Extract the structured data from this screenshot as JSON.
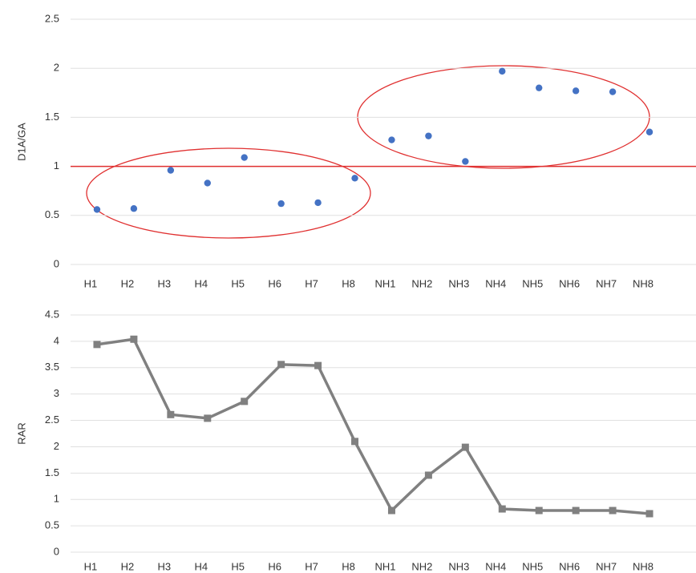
{
  "chart_data": [
    {
      "type": "scatter",
      "y_label": "D1A/GA",
      "categories": [
        "H1",
        "H2",
        "H3",
        "H4",
        "H5",
        "H6",
        "H7",
        "H8",
        "NH1",
        "NH2",
        "NH3",
        "NH4",
        "NH5",
        "NH6",
        "NH7",
        "NH8"
      ],
      "values": [
        0.56,
        0.57,
        0.96,
        0.83,
        1.09,
        0.62,
        0.63,
        0.88,
        1.27,
        1.31,
        1.05,
        1.97,
        1.8,
        1.77,
        1.76,
        1.35
      ],
      "color": "#4472c4",
      "reference_line": 1,
      "reference_color": "#e03030",
      "ylim": [
        0,
        2.5
      ],
      "yticks": [
        0,
        0.5,
        1,
        1.5,
        2,
        2.5
      ],
      "grid": true
    },
    {
      "type": "line",
      "y_label": "RAR",
      "categories": [
        "H1",
        "H2",
        "H3",
        "H4",
        "H5",
        "H6",
        "H7",
        "H8",
        "NH1",
        "NH2",
        "NH3",
        "NH4",
        "NH5",
        "NH6",
        "NH7",
        "NH8"
      ],
      "values": [
        3.94,
        4.04,
        2.61,
        2.54,
        2.86,
        3.56,
        3.54,
        2.1,
        0.79,
        1.46,
        1.99,
        0.82,
        0.79,
        0.79,
        0.79,
        0.73
      ],
      "color": "#808080",
      "ylim": [
        0,
        4.5
      ],
      "yticks": [
        0,
        0.5,
        1,
        1.5,
        2,
        2.5,
        3,
        3.5,
        4,
        4.5
      ],
      "grid": true
    }
  ]
}
